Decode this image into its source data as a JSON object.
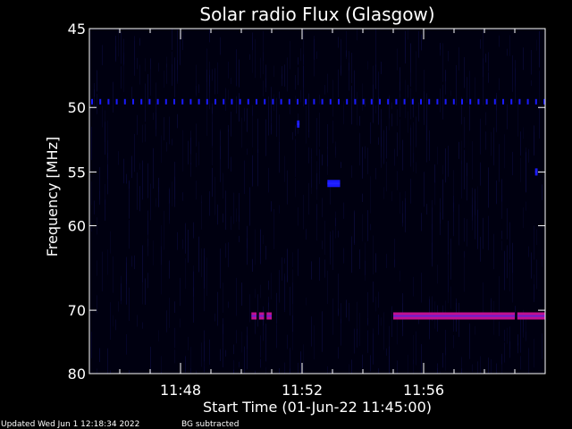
{
  "chart_data": {
    "type": "heatmap",
    "title": "Solar radio Flux (Glasgow)",
    "xlabel": "Start Time (01-Jun-22 11:45:00)",
    "ylabel": "Frequency [MHz]",
    "x_unit": "time",
    "xlim": [
      "11:45:00",
      "12:00:00"
    ],
    "ylim": [
      45,
      80
    ],
    "y_inverted": true,
    "y_ticks": [
      45,
      50,
      55,
      60,
      70,
      80
    ],
    "x_ticks": [
      "11:48",
      "11:52",
      "11:56"
    ],
    "background_color": "#000010",
    "signals": [
      {
        "kind": "dotted-line",
        "freq_mhz": 49.6,
        "t_start": "11:45:00",
        "t_end": "12:00:00",
        "color": "#1a1aff"
      },
      {
        "kind": "segment",
        "freq_mhz": 70.8,
        "t_start": "11:50:20",
        "t_end": "11:50:30",
        "color": "#c01090"
      },
      {
        "kind": "segment",
        "freq_mhz": 70.8,
        "t_start": "11:50:35",
        "t_end": "11:50:45",
        "color": "#c01090"
      },
      {
        "kind": "segment",
        "freq_mhz": 70.8,
        "t_start": "11:50:50",
        "t_end": "11:51:00",
        "color": "#c01090"
      },
      {
        "kind": "segment",
        "freq_mhz": 70.8,
        "t_start": "11:55:00",
        "t_end": "11:59:00",
        "color": "#c01090"
      },
      {
        "kind": "segment",
        "freq_mhz": 70.8,
        "t_start": "11:59:05",
        "t_end": "12:00:00",
        "color": "#c01090"
      },
      {
        "kind": "segment",
        "freq_mhz": 56.0,
        "t_start": "11:52:50",
        "t_end": "11:53:15",
        "color": "#1a1aff"
      },
      {
        "kind": "segment",
        "freq_mhz": 51.2,
        "t_start": "11:51:50",
        "t_end": "11:51:55",
        "color": "#1a1aff"
      },
      {
        "kind": "segment",
        "freq_mhz": 55.0,
        "t_start": "11:59:40",
        "t_end": "11:59:45",
        "color": "#1a1aff"
      }
    ]
  },
  "footer": {
    "updated": "Updated Wed Jun  1 12:18:34 2022",
    "note": "BG subtracted"
  }
}
